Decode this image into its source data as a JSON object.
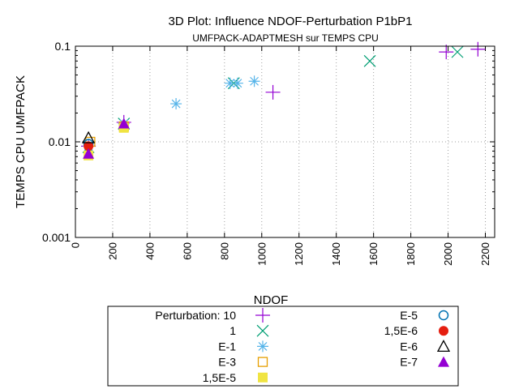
{
  "chart_data": {
    "type": "scatter",
    "title": "3D Plot: Influence NDOF-Perturbation P1bP1",
    "subtitle": "UMFPACK-ADAPTMESH sur TEMPS CPU",
    "xlabel": "NDOF",
    "ylabel": "TEMPS CPU UMFPACK",
    "xlim": [
      0,
      2250
    ],
    "ylim": [
      0.001,
      0.1
    ],
    "yscale": "log",
    "grid": true,
    "legend_position": "bottom-outside",
    "x_ticks": [
      "0",
      "200",
      "400",
      "600",
      "800",
      "1000",
      "1200",
      "1400",
      "1600",
      "1800",
      "2000",
      "2200"
    ],
    "x_tick_values": [
      0,
      200,
      400,
      600,
      800,
      1000,
      1200,
      1400,
      1600,
      1800,
      2000,
      2200
    ],
    "y_ticks": [
      "0.001",
      "0.01",
      "0.1"
    ],
    "y_tick_values": [
      0.001,
      0.01,
      0.1
    ],
    "series": [
      {
        "name": "Perturbation: 10",
        "marker": "plus",
        "color": "#9400d3",
        "x": [
          70,
          260,
          1060,
          1990,
          2160
        ],
        "y": [
          0.009,
          0.016,
          0.033,
          0.087,
          0.093
        ]
      },
      {
        "name": "1",
        "marker": "cross",
        "color": "#009e73",
        "x": [
          70,
          260,
          850,
          1580,
          2050
        ],
        "y": [
          0.0088,
          0.0155,
          0.041,
          0.07,
          0.087
        ]
      },
      {
        "name": "E-1",
        "marker": "star",
        "color": "#56b4e9",
        "x": [
          70,
          260,
          540,
          830,
          870,
          960
        ],
        "y": [
          0.009,
          0.0155,
          0.025,
          0.041,
          0.041,
          0.043
        ]
      },
      {
        "name": "E-3",
        "marker": "square-open",
        "color": "#e69f00",
        "x": [
          80,
          260
        ],
        "y": [
          0.01,
          0.0145
        ]
      },
      {
        "name": "1,5E-5",
        "marker": "square-filled",
        "color": "#f0e442",
        "x": [
          70,
          260
        ],
        "y": [
          0.0072,
          0.014
        ]
      },
      {
        "name": "E-5",
        "marker": "circle-open",
        "color": "#0072b2",
        "x": [
          70
        ],
        "y": [
          0.0095
        ]
      },
      {
        "name": "1,5E-6",
        "marker": "circle-filled",
        "color": "#e51e10",
        "x": [
          70
        ],
        "y": [
          0.009
        ]
      },
      {
        "name": "E-6",
        "marker": "triangle-open",
        "color": "#000000",
        "x": [
          70
        ],
        "y": [
          0.011
        ]
      },
      {
        "name": "E-7",
        "marker": "triangle-filled",
        "color": "#9400d3",
        "x": [
          70,
          260
        ],
        "y": [
          0.0075,
          0.0155
        ]
      }
    ]
  }
}
